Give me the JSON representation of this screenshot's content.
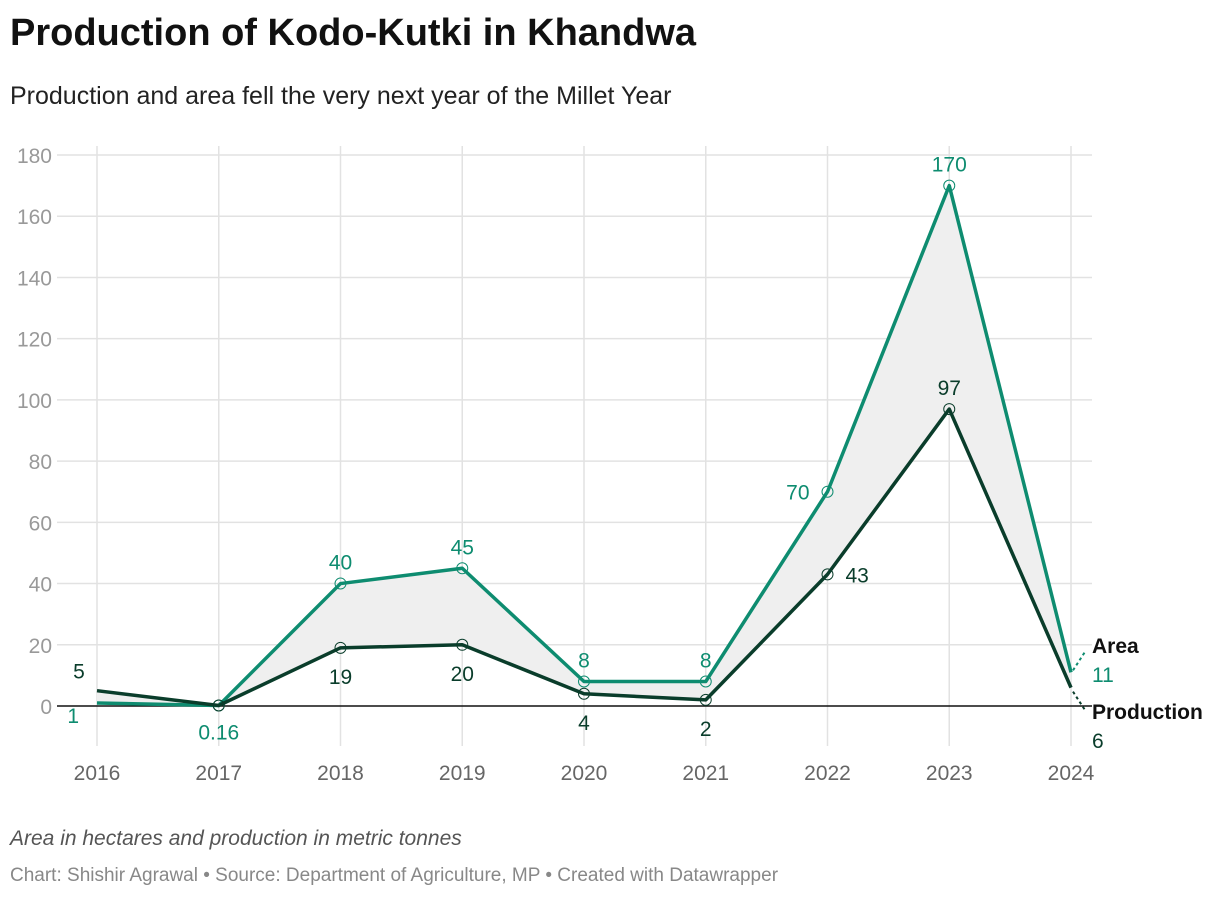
{
  "header": {
    "title": "Production of Kodo-Kutki in Khandwa",
    "subtitle": "Production and area fell the very next year of the Millet Year"
  },
  "footer": {
    "note": "Area in hectares and production in metric tonnes",
    "credit": "Chart: Shishir Agrawal • Source: Department of Agriculture, MP • Created with Datawrapper"
  },
  "chart_data": {
    "type": "line",
    "title": "Production of Kodo-Kutki in Khandwa",
    "x": [
      "2016",
      "2017",
      "2018",
      "2019",
      "2020",
      "2021",
      "2022",
      "2023",
      "2024"
    ],
    "series": [
      {
        "name": "Area",
        "color": "#0e8c70",
        "values": [
          1,
          0.16,
          40,
          45,
          8,
          8,
          70,
          170,
          11
        ],
        "labels": [
          "1",
          "0.16",
          "40",
          "45",
          "8",
          "8",
          "70",
          "170",
          "11"
        ]
      },
      {
        "name": "Production",
        "color": "#0a3d2b",
        "values": [
          5,
          0.16,
          19,
          20,
          4,
          2,
          43,
          97,
          6
        ],
        "labels": [
          "5",
          "",
          "19",
          "20",
          "4",
          "2",
          "43",
          "97",
          "6"
        ]
      }
    ],
    "yticks": [
      0,
      20,
      40,
      60,
      80,
      100,
      120,
      140,
      160,
      180
    ],
    "ylim": [
      0,
      180
    ],
    "grid": true,
    "fill_between": "#efefef",
    "legend": "inline-right"
  }
}
